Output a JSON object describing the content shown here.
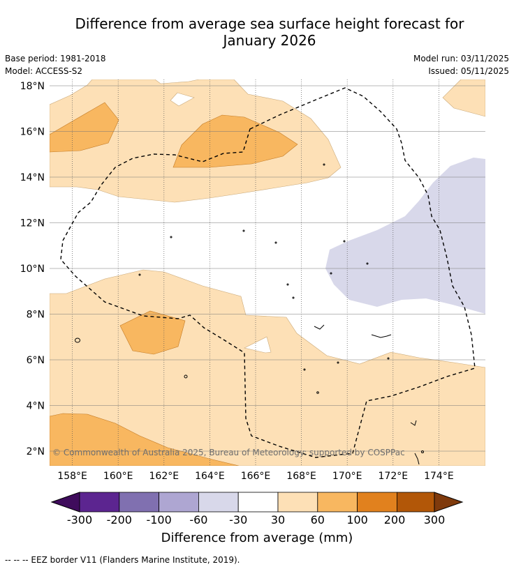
{
  "title_line1": "Difference from average sea surface height forecast for",
  "title_line2": "January 2026",
  "base_period": "Base period: 1981-2018",
  "model": "Model: ACCESS-S2",
  "model_run": "Model run: 03/11/2025",
  "issued": "Issued: 05/11/2025",
  "copyright": "© Commonwealth of Australia 2025, Bureau of Meteorology: supported by COSPPac",
  "lat_labels": [
    "18°N",
    "16°N",
    "14°N",
    "12°N",
    "10°N",
    "8°N",
    "6°N",
    "4°N",
    "2°N"
  ],
  "lon_labels": [
    "158°E",
    "160°E",
    "162°E",
    "164°E",
    "166°E",
    "168°E",
    "170°E",
    "172°E",
    "174°E"
  ],
  "colorbar": {
    "title": "Difference from average (mm)",
    "tick_labels": [
      "-300",
      "-200",
      "-100",
      "-60",
      "-30",
      "30",
      "60",
      "100",
      "200",
      "300"
    ],
    "colors": [
      "#3f0c5c",
      "#5c2590",
      "#8070b0",
      "#aea6d2",
      "#d8d8ea",
      "#ffffff",
      "#fde0b6",
      "#f8b760",
      "#e1811e",
      "#b25708",
      "#7f3a0c"
    ]
  },
  "legend_note": "--  --  -- EEZ border V11 (Flanders Marine Institute, 2019)."
}
